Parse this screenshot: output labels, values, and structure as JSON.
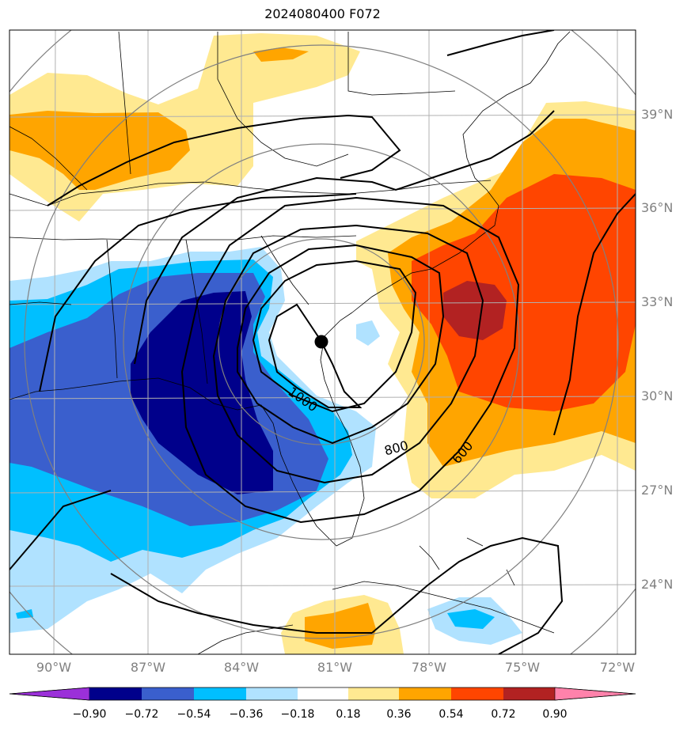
{
  "title": "2024080400 F072",
  "lat_labels": [
    "39°N",
    "36°N",
    "33°N",
    "30°N",
    "27°N",
    "24°N"
  ],
  "lon_labels": [
    "90°W",
    "87°W",
    "84°W",
    "81°W",
    "78°W",
    "75°W",
    "72°W"
  ],
  "contour_labels": [
    "1000",
    "800",
    "600"
  ],
  "colorbar": {
    "ticks": [
      "−0.90",
      "−0.72",
      "−0.54",
      "−0.36",
      "−0.18",
      "0.18",
      "0.36",
      "0.54",
      "0.72",
      "0.90"
    ],
    "colors": [
      "#9b30d9",
      "#00008b",
      "#3a5fcd",
      "#00bfff",
      "#b0e2ff",
      "#ffffff",
      "#ffe991",
      "#ffa500",
      "#ff4500",
      "#b22222",
      "#ff82ab"
    ]
  },
  "marker": {
    "lat": 31.7,
    "lon": -81.4,
    "color": "#000000"
  },
  "colors": {
    "coast": "#000000",
    "grid": "#b0b0b0",
    "range_rings": "#808080",
    "contours": "#000000"
  }
}
